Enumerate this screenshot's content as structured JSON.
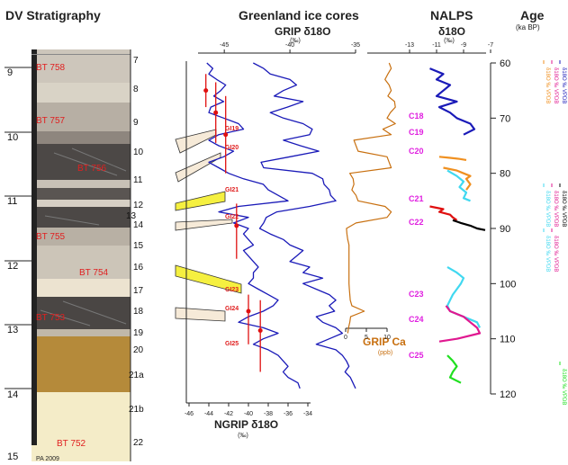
{
  "titles": {
    "dv": "DV Stratigraphy",
    "greenland": "Greenland ice cores",
    "nalps": "NALPS",
    "nalps_sub": "δ18O",
    "age": "Age",
    "age_unit": "(ka BP)",
    "grip": "GRIP δ18O",
    "grip_unit": "(‰)",
    "ngrip": "NGRIP δ18O",
    "ngrip_unit": "(‰)",
    "ca": "GRIP Ca",
    "ca_unit": "(ppb)",
    "nalps_unit": "(‰)",
    "credit": "PA 2009"
  },
  "colors": {
    "ngrip": "#1a1ab8",
    "grip": "#1a1ab8",
    "ca": "#c87010",
    "nalps_blue": "#1a1ab8",
    "nalps_cyan": "#40d8f0",
    "nalps_magenta": "#e01890",
    "nalps_red": "#e01010",
    "nalps_orange": "#f09020",
    "nalps_black": "#000000",
    "nalps_green": "#20e020",
    "error_bar": "#e01010",
    "gi_label": "#e02020",
    "c_label": "#e020e0"
  },
  "chart_data": {
    "type": "line",
    "age_axis": {
      "ticks": [
        "60",
        "70",
        "80",
        "90",
        "100",
        "110",
        "120"
      ],
      "range": [
        60,
        120
      ]
    },
    "depth_axis": {
      "ticks": [
        "9",
        "10",
        "11",
        "12",
        "13",
        "14",
        "15"
      ]
    },
    "stratigraphy": {
      "layers": [
        "7",
        "8",
        "9",
        "10",
        "11",
        "12",
        "13",
        "14",
        "15",
        "16",
        "17",
        "18",
        "19",
        "20",
        "21a",
        "21b",
        "22"
      ],
      "samples": [
        "BT 758",
        "BT 757",
        "BT 756",
        "BT 755",
        "BT 754",
        "BT 753",
        "BT 752"
      ]
    },
    "ngrip_axis": {
      "ticks": [
        "-46",
        "-44",
        "-42",
        "-40",
        "-38",
        "-36",
        "-34"
      ],
      "range": [
        -46,
        -34
      ]
    },
    "grip_axis": {
      "ticks": [
        "-45",
        "-40",
        "-35"
      ],
      "range": [
        -47,
        -35
      ]
    },
    "ca_axis": {
      "ticks": [
        "0",
        "5",
        "10"
      ],
      "range": [
        0,
        10
      ]
    },
    "nalps_axis": {
      "ticks": [
        "-13",
        "-11",
        "-9",
        "-7"
      ],
      "range": [
        -13,
        -7
      ]
    },
    "gi_events": [
      "GI19",
      "GI20",
      "GI21",
      "GI22",
      "GI23",
      "GI24",
      "GI25"
    ],
    "c_events": [
      "C18",
      "C19",
      "C20",
      "C21",
      "C22",
      "C23",
      "C24",
      "C25"
    ],
    "ngrip_series": [
      [
        60,
        -44.2
      ],
      [
        61,
        -43.6
      ],
      [
        62,
        -44.0
      ],
      [
        63,
        -43.2
      ],
      [
        64,
        -42.3
      ],
      [
        65,
        -42.8
      ],
      [
        66,
        -43.5
      ],
      [
        67,
        -42.5
      ],
      [
        68,
        -43.8
      ],
      [
        69,
        -44.0
      ],
      [
        70,
        -42.5
      ],
      [
        71,
        -41.0
      ],
      [
        72,
        -40.5
      ],
      [
        73,
        -43.0
      ],
      [
        74,
        -44.0
      ],
      [
        75,
        -43.0
      ],
      [
        76,
        -41.5
      ],
      [
        77,
        -42.5
      ],
      [
        78,
        -44.0
      ],
      [
        79,
        -43.0
      ],
      [
        80,
        -42.0
      ],
      [
        81,
        -40.5
      ],
      [
        82,
        -38.5
      ],
      [
        83,
        -38.0
      ],
      [
        84,
        -37.0
      ],
      [
        85,
        -36.0
      ],
      [
        86,
        -41.0
      ],
      [
        87,
        -43.0
      ],
      [
        88,
        -40.0
      ],
      [
        89,
        -41.5
      ],
      [
        90,
        -40.0
      ],
      [
        91,
        -40.5
      ],
      [
        92,
        -40.0
      ],
      [
        93,
        -39.5
      ],
      [
        94,
        -40.5
      ],
      [
        95,
        -40.0
      ],
      [
        96,
        -39.5
      ],
      [
        97,
        -39.0
      ],
      [
        98,
        -39.5
      ],
      [
        99,
        -39.5
      ],
      [
        100,
        -40.0
      ],
      [
        101,
        -39.0
      ],
      [
        102,
        -38.0
      ],
      [
        103,
        -37.0
      ],
      [
        104,
        -37.5
      ],
      [
        105,
        -38.5
      ],
      [
        106,
        -40.0
      ],
      [
        107,
        -41.0
      ],
      [
        108,
        -38.5
      ],
      [
        109,
        -37.0
      ],
      [
        110,
        -38.5
      ],
      [
        111,
        -39.5
      ],
      [
        112,
        -38.0
      ],
      [
        113,
        -37.0
      ],
      [
        114,
        -36.5
      ],
      [
        115,
        -36.0
      ],
      [
        116,
        -36.5
      ],
      [
        117,
        -36.0
      ],
      [
        118,
        -35.0
      ],
      [
        119,
        -34.8
      ]
    ],
    "grip_series": [
      [
        60,
        -42.8
      ],
      [
        61,
        -42.0
      ],
      [
        62,
        -41.5
      ],
      [
        63,
        -40.0
      ],
      [
        64,
        -39.5
      ],
      [
        65,
        -40.5
      ],
      [
        66,
        -41.2
      ],
      [
        67,
        -39.0
      ],
      [
        68,
        -40.2
      ],
      [
        69,
        -41.5
      ],
      [
        70,
        -40.5
      ],
      [
        71,
        -39.0
      ],
      [
        72,
        -38.3
      ],
      [
        73,
        -38.5
      ],
      [
        74,
        -40.5
      ],
      [
        75,
        -39.2
      ],
      [
        76,
        -37.8
      ],
      [
        77,
        -40.0
      ],
      [
        78,
        -42.2
      ],
      [
        79,
        -42.0
      ],
      [
        80,
        -38.3
      ],
      [
        81,
        -37.5
      ],
      [
        82,
        -37.4
      ],
      [
        83,
        -37.0
      ],
      [
        84,
        -36.9
      ],
      [
        85,
        -36.5
      ],
      [
        86,
        -38.5
      ],
      [
        87,
        -41.0
      ],
      [
        88,
        -41.8
      ],
      [
        89,
        -42.0
      ],
      [
        90,
        -42.3
      ],
      [
        91,
        -41.5
      ],
      [
        92,
        -40.5
      ],
      [
        93,
        -40.0
      ],
      [
        94,
        -39.0
      ],
      [
        95,
        -39.5
      ],
      [
        96,
        -40.0
      ],
      [
        97,
        -38.5
      ],
      [
        98,
        -39.0
      ],
      [
        99,
        -37.5
      ],
      [
        100,
        -39.0
      ],
      [
        101,
        -38.0
      ],
      [
        102,
        -37.0
      ],
      [
        103,
        -36.5
      ],
      [
        104,
        -37.0
      ],
      [
        105,
        -36.6
      ],
      [
        106,
        -38.0
      ],
      [
        107,
        -37.5
      ],
      [
        108,
        -36.5
      ],
      [
        109,
        -36.0
      ],
      [
        110,
        -37.0
      ],
      [
        111,
        -38.0
      ],
      [
        112,
        -36.5
      ],
      [
        113,
        -36.0
      ],
      [
        114,
        -35.7
      ],
      [
        115,
        -35.5
      ],
      [
        116,
        -35.8
      ],
      [
        117,
        -35.4
      ],
      [
        118,
        -35.2
      ],
      [
        119,
        -35.0
      ]
    ],
    "ca_series": [
      [
        60,
        10.5
      ],
      [
        61,
        11.0
      ],
      [
        62,
        10.2
      ],
      [
        63,
        9.5
      ],
      [
        64,
        10.5
      ],
      [
        65,
        11.0
      ],
      [
        66,
        10.2
      ],
      [
        67,
        11.8
      ],
      [
        68,
        12.0
      ],
      [
        69,
        10.8
      ],
      [
        70,
        10.0
      ],
      [
        71,
        12.0
      ],
      [
        72,
        9.0
      ],
      [
        73,
        11.0
      ],
      [
        74,
        2.0
      ],
      [
        75,
        2.5
      ],
      [
        76,
        3.0
      ],
      [
        77,
        10.0
      ],
      [
        78,
        10.5
      ],
      [
        79,
        11.0
      ],
      [
        80,
        1.0
      ],
      [
        81,
        1.8
      ],
      [
        82,
        2.0
      ],
      [
        83,
        1.5
      ],
      [
        84,
        2.5
      ],
      [
        85,
        3.0
      ],
      [
        86,
        9.5
      ],
      [
        87,
        11.0
      ],
      [
        88,
        10.0
      ],
      [
        89,
        2.5
      ],
      [
        90,
        0.2
      ],
      [
        91,
        0.3
      ],
      [
        92,
        0.5
      ],
      [
        93,
        0.8
      ],
      [
        94,
        0.8
      ],
      [
        95,
        0.8
      ],
      [
        96,
        0.8
      ],
      [
        97,
        0.8
      ],
      [
        98,
        0.8
      ],
      [
        99,
        0.8
      ],
      [
        100,
        0.8
      ],
      [
        101,
        0.9
      ],
      [
        102,
        1.0
      ],
      [
        103,
        1.1
      ],
      [
        104,
        1.5
      ],
      [
        105,
        4.5
      ],
      [
        106,
        1.2
      ],
      [
        107,
        1.0
      ],
      [
        108,
        0.7
      ],
      [
        109,
        0.5
      ]
    ],
    "error_bars": [
      {
        "ngrip": -44.3,
        "age": 65.0,
        "lo": 62.0,
        "hi": 68.0
      },
      {
        "ngrip": -43.3,
        "age": 69.0,
        "lo": 63.5,
        "hi": 74.5
      },
      {
        "ngrip": -42.3,
        "age": 73.0,
        "lo": 66.0,
        "hi": 80.0
      },
      {
        "ngrip": -41.2,
        "age": 89.5,
        "lo": 85.5,
        "hi": 95.5
      },
      {
        "ngrip": -40.0,
        "age": 105.0,
        "lo": 102.0,
        "hi": 111.0
      },
      {
        "ngrip": -38.8,
        "age": 108.5,
        "lo": 103.0,
        "hi": 116.0
      }
    ],
    "nalps_series": [
      {
        "color": "nalps_blue",
        "points": [
          [
            61,
            -11.5
          ],
          [
            62,
            -10.5
          ],
          [
            63,
            -11.0
          ],
          [
            64,
            -10.0
          ],
          [
            65,
            -10.5
          ],
          [
            66,
            -11.0
          ],
          [
            67,
            -9.5
          ],
          [
            68,
            -10.8
          ],
          [
            69,
            -10.0
          ],
          [
            70,
            -9.5
          ],
          [
            71,
            -8.5
          ],
          [
            72,
            -8.2
          ],
          [
            73,
            -9.0
          ]
        ]
      },
      {
        "color": "nalps_orange",
        "points": [
          [
            77,
            -10.8
          ],
          [
            77.2,
            -10.0
          ],
          [
            77.4,
            -9.3
          ],
          [
            77.6,
            -8.8
          ]
        ]
      },
      {
        "color": "nalps_orange",
        "points": [
          [
            79,
            -10.5
          ],
          [
            79.5,
            -9.5
          ],
          [
            80,
            -9.0
          ],
          [
            80.5,
            -8.5
          ],
          [
            81,
            -8.8
          ],
          [
            82,
            -8.5
          ],
          [
            83,
            -8.8
          ]
        ]
      },
      {
        "color": "nalps_cyan",
        "points": [
          [
            79.5,
            -10.2
          ],
          [
            80.5,
            -9.5
          ],
          [
            81.5,
            -9.0
          ],
          [
            82.5,
            -9.3
          ],
          [
            83.5,
            -8.8
          ],
          [
            84.5,
            -9.0
          ],
          [
            85,
            -8.5
          ]
        ]
      },
      {
        "color": "nalps_red",
        "points": [
          [
            86,
            -11.5
          ],
          [
            86.5,
            -10.5
          ],
          [
            87,
            -10.8
          ],
          [
            87.5,
            -10.0
          ],
          [
            88,
            -9.8
          ],
          [
            88.5,
            -9.5
          ]
        ]
      },
      {
        "color": "nalps_black",
        "points": [
          [
            88.5,
            -9.8
          ],
          [
            89,
            -9.2
          ],
          [
            89.5,
            -8.5
          ],
          [
            90,
            -8.0
          ],
          [
            90.3,
            -7.4
          ]
        ]
      },
      {
        "color": "nalps_cyan",
        "points": [
          [
            97,
            -10.2
          ],
          [
            98,
            -9.5
          ],
          [
            99,
            -9.0
          ],
          [
            100,
            -9.2
          ],
          [
            101,
            -9.5
          ],
          [
            102,
            -9.8
          ],
          [
            103,
            -10.0
          ],
          [
            104,
            -10.2
          ],
          [
            105,
            -10.0
          ],
          [
            106,
            -9.0
          ],
          [
            107,
            -8.0
          ],
          [
            108,
            -7.8
          ]
        ]
      },
      {
        "color": "nalps_magenta",
        "points": [
          [
            104,
            -10.3
          ],
          [
            105,
            -10.0
          ],
          [
            106,
            -9.0
          ],
          [
            107,
            -8.5
          ],
          [
            108,
            -8.0
          ],
          [
            109,
            -7.8
          ],
          [
            110,
            -9.5
          ],
          [
            110.5,
            -10.8
          ]
        ]
      },
      {
        "color": "nalps_green",
        "points": [
          [
            113,
            -10.2
          ],
          [
            114,
            -9.8
          ],
          [
            115,
            -9.5
          ],
          [
            116,
            -9.8
          ],
          [
            117,
            -10.0
          ],
          [
            118,
            -9.2
          ]
        ]
      }
    ],
    "legend": {
      "entries": [
        "δ18O ‰ VPDB",
        "δ18O ‰ VPDB",
        "δ18O ‰ VPDB",
        "δ18O ‰ VPDB",
        "δ18O ‰ VPDB",
        "δ18O ‰ VPDB",
        "δ18O ‰ VPDB",
        "δ18O ‰ VPDB",
        "δ18O ‰ VPDB"
      ]
    }
  }
}
